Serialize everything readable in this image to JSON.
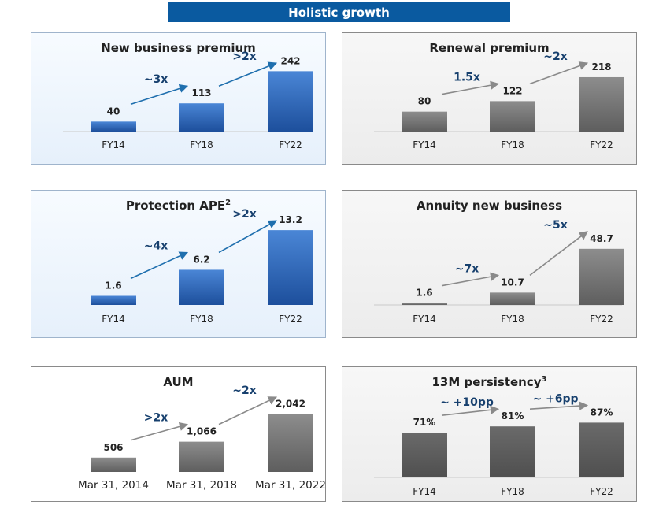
{
  "header": {
    "title": "Holistic growth"
  },
  "colors": {
    "blue_dark": "#1d4f9c",
    "blue_light": "#4a86d6",
    "grey_dark": "#5e5e5e",
    "grey_light": "#8d8d8d",
    "arrow_blue": "#1f6fae",
    "arrow_grey": "#8a8a8a",
    "label_blue": "#17406e"
  },
  "chart_data": [
    {
      "id": "nbp",
      "type": "bar",
      "title": "New business premium",
      "title_sup": "",
      "categories": [
        "FY14",
        "FY18",
        "FY22"
      ],
      "values": [
        40,
        113,
        242
      ],
      "value_labels": [
        "40",
        "113",
        "242"
      ],
      "ylim": [
        0,
        300
      ],
      "growth": [
        {
          "from": 0,
          "to": 1,
          "label": "~3x"
        },
        {
          "from": 1,
          "to": 2,
          "label": ">2x"
        }
      ]
    },
    {
      "id": "renewal",
      "type": "bar",
      "title": "Renewal premium",
      "title_sup": "",
      "categories": [
        "FY14",
        "FY18",
        "FY22"
      ],
      "values": [
        80,
        122,
        218
      ],
      "value_labels": [
        "80",
        "122",
        "218"
      ],
      "ylim": [
        0,
        300
      ],
      "growth": [
        {
          "from": 0,
          "to": 1,
          "label": "1.5x"
        },
        {
          "from": 1,
          "to": 2,
          "label": "~2x"
        }
      ]
    },
    {
      "id": "protection",
      "type": "bar",
      "title": "Protection APE",
      "title_sup": "2",
      "categories": [
        "FY14",
        "FY18",
        "FY22"
      ],
      "values": [
        1.6,
        6.2,
        13.2
      ],
      "value_labels": [
        "1.6",
        "6.2",
        "13.2"
      ],
      "ylim": [
        0,
        16
      ],
      "growth": [
        {
          "from": 0,
          "to": 1,
          "label": "~4x"
        },
        {
          "from": 1,
          "to": 2,
          "label": ">2x"
        }
      ]
    },
    {
      "id": "annuity",
      "type": "bar",
      "title": "Annuity new business",
      "title_sup": "",
      "categories": [
        "FY14",
        "FY18",
        "FY22"
      ],
      "values": [
        1.6,
        10.7,
        48.7
      ],
      "value_labels": [
        "1.6",
        "10.7",
        "48.7"
      ],
      "ylim": [
        0,
        65
      ],
      "growth": [
        {
          "from": 0,
          "to": 1,
          "label": "~7x"
        },
        {
          "from": 1,
          "to": 2,
          "label": "~5x"
        }
      ]
    },
    {
      "id": "aum",
      "type": "bar",
      "title": "AUM",
      "title_sup": "",
      "categories": [
        "Mar 31, 2014",
        "Mar 31, 2018",
        "Mar 31, 2022"
      ],
      "values": [
        506,
        1066,
        2042
      ],
      "value_labels": [
        "506",
        "1,066",
        "2,042"
      ],
      "ylim": [
        0,
        5000
      ],
      "growth": [
        {
          "from": 0,
          "to": 1,
          "label": ">2x"
        },
        {
          "from": 1,
          "to": 2,
          "label": "~2x"
        }
      ]
    },
    {
      "id": "persistency",
      "type": "bar",
      "title": "13M persistency",
      "title_sup": "3",
      "categories": [
        "FY14",
        "FY18",
        "FY22"
      ],
      "values": [
        71,
        81,
        87
      ],
      "value_labels": [
        "71%",
        "81%",
        "87%"
      ],
      "ylim": [
        0,
        150
      ],
      "growth": [
        {
          "from": 0,
          "to": 1,
          "label": "~ +10pp"
        },
        {
          "from": 1,
          "to": 2,
          "label": "~ +6pp"
        }
      ]
    }
  ]
}
